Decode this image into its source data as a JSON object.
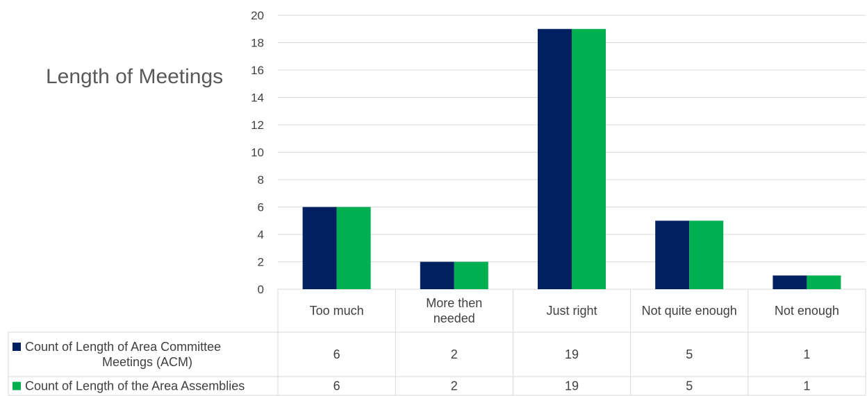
{
  "chart_data": {
    "type": "bar",
    "title": "Length of Meetings",
    "categories": [
      "Too much",
      "More then needed",
      "Just right",
      "Not quite enough",
      "Not enough"
    ],
    "category_lines": [
      [
        "Too much"
      ],
      [
        "More then",
        "needed"
      ],
      [
        "Just right"
      ],
      [
        "Not quite enough"
      ],
      [
        "Not enough"
      ]
    ],
    "series": [
      {
        "name": "Count of Length of Area Committee Meetings (ACM)",
        "name_lines": [
          "Count of Length of Area Committee",
          "Meetings (ACM)"
        ],
        "values": [
          6,
          2,
          19,
          5,
          1
        ],
        "color": "#002060"
      },
      {
        "name": "Count of Length of the Area Assemblies",
        "name_lines": [
          "Count of Length of the Area Assemblies"
        ],
        "values": [
          6,
          2,
          19,
          5,
          1
        ],
        "color": "#00B050"
      }
    ],
    "ylim": [
      0,
      20
    ],
    "yticks": [
      0,
      2,
      4,
      6,
      8,
      10,
      12,
      14,
      16,
      18,
      20
    ],
    "grid": true,
    "legend": "data table",
    "gridline_color": "#d9d9d9"
  }
}
